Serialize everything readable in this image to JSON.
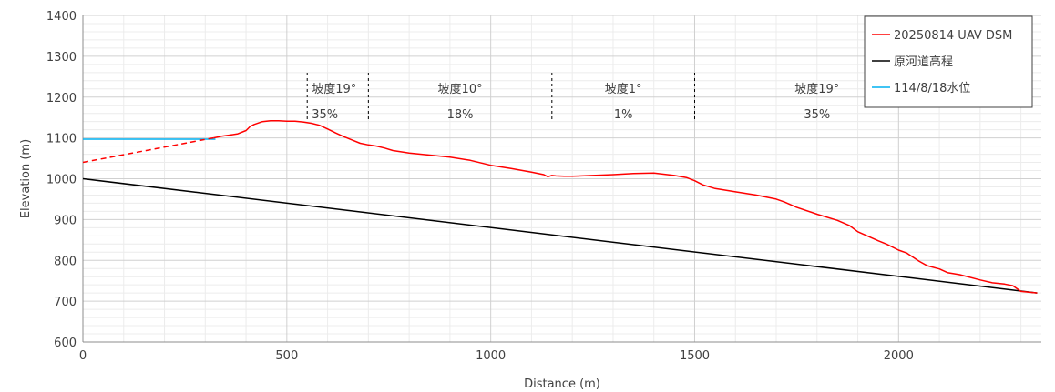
{
  "chart_data": {
    "type": "line",
    "xlabel": "Distance (m)",
    "ylabel": "Elevation (m)",
    "xlim": [
      0,
      2350
    ],
    "ylim": [
      600,
      1400
    ],
    "x_ticks": [
      0,
      500,
      1000,
      1500,
      2000
    ],
    "y_ticks": [
      600,
      700,
      800,
      900,
      1000,
      1100,
      1200,
      1300,
      1400
    ],
    "x_tick_labels": [
      "0",
      "500",
      "1000",
      "1500",
      "2000"
    ],
    "y_tick_labels": [
      "600",
      "700",
      "800",
      "900",
      "1000",
      "1100",
      "1200",
      "1300",
      "1400"
    ],
    "grid": true,
    "legend_position": "top-right",
    "series": [
      {
        "name": "20250814 UAV DSM",
        "color": "#ff0000",
        "style": "solid",
        "x": [
          320,
          340,
          360,
          380,
          400,
          410,
          420,
          440,
          460,
          480,
          500,
          520,
          540,
          560,
          580,
          600,
          620,
          640,
          660,
          680,
          700,
          720,
          740,
          760,
          780,
          800,
          850,
          900,
          950,
          1000,
          1050,
          1100,
          1130,
          1140,
          1150,
          1160,
          1180,
          1200,
          1250,
          1300,
          1350,
          1400,
          1450,
          1480,
          1500,
          1520,
          1550,
          1600,
          1650,
          1700,
          1720,
          1750,
          1800,
          1850,
          1880,
          1900,
          1950,
          1970,
          2000,
          2020,
          2050,
          2070,
          2100,
          2120,
          2150,
          2200,
          2230,
          2260,
          2280,
          2300,
          2320,
          2340
        ],
        "y": [
          1100,
          1104,
          1107,
          1110,
          1118,
          1128,
          1133,
          1140,
          1142,
          1142,
          1141,
          1141,
          1139,
          1136,
          1131,
          1122,
          1112,
          1103,
          1095,
          1087,
          1083,
          1080,
          1075,
          1069,
          1066,
          1063,
          1058,
          1053,
          1045,
          1033,
          1025,
          1016,
          1010,
          1005,
          1008,
          1007,
          1006,
          1006,
          1008,
          1010,
          1013,
          1014,
          1008,
          1003,
          995,
          985,
          976,
          968,
          960,
          950,
          943,
          930,
          913,
          898,
          885,
          870,
          848,
          840,
          825,
          818,
          798,
          787,
          779,
          770,
          765,
          752,
          745,
          742,
          738,
          724,
          722,
          720
        ]
      },
      {
        "name": "",
        "color": "#ff0000",
        "style": "dashed",
        "x": [
          0,
          320
        ],
        "y": [
          1040,
          1100
        ]
      },
      {
        "name": "原河道高程",
        "color": "#000000",
        "style": "solid",
        "x": [
          0,
          2340
        ],
        "y": [
          1000,
          720
        ]
      },
      {
        "name": "114/8/18水位",
        "color": "#00b0f0",
        "style": "solid",
        "x": [
          0,
          325
        ],
        "y": [
          1097,
          1097
        ]
      }
    ],
    "divider_x": [
      550,
      700,
      1150,
      1500
    ],
    "annotations": [
      {
        "label": "坡度19°",
        "percent": "35%"
      },
      {
        "label": "坡度10°",
        "percent": "18%"
      },
      {
        "label": "坡度1°",
        "percent": "1%"
      },
      {
        "label": "坡度19°",
        "percent": "35%"
      }
    ]
  }
}
